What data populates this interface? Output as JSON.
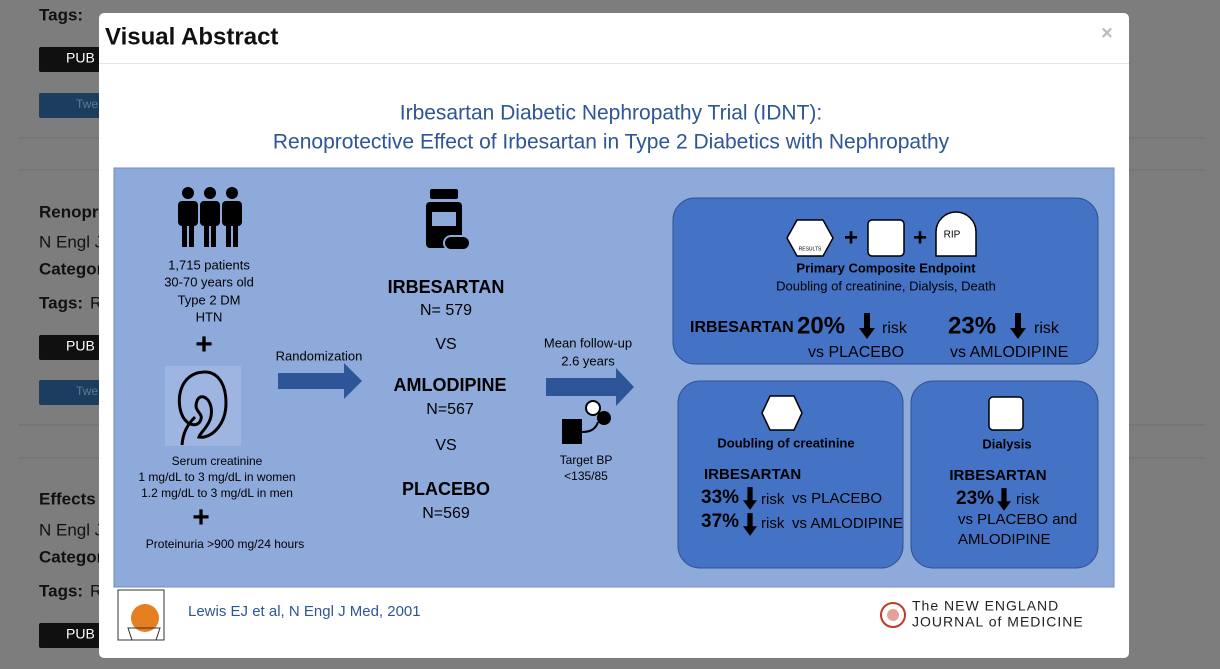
{
  "background": {
    "tags_label": "Tags:",
    "publication_button": "PUB",
    "twitter_button": "Twe",
    "articles": [
      {
        "title": "Renopr",
        "journal": "N Engl J",
        "category": "Categor",
        "tag": "R"
      },
      {
        "title": "Effects",
        "journal": "N Engl J",
        "category": "Categor",
        "tag": "R"
      }
    ]
  },
  "modal": {
    "title": "Visual Abstract",
    "close": "×"
  },
  "abstract": {
    "title": [
      "Irbesartan Diabetic Nephropathy Trial (IDNT):",
      "Renoprotective Effect of Irbesartan in Type 2 Diabetics with Nephropathy"
    ],
    "population": [
      "1,715 patients",
      "30-70 years old",
      "Type 2 DM",
      "HTN"
    ],
    "plus": "+",
    "creatinine": [
      "Serum creatinine",
      "1 mg/dL to 3 mg/dL in women",
      "1.2 mg/dL to 3 mg/dL in men"
    ],
    "proteinuria": "Proteinuria >900 mg/24 hours",
    "randomization": "Randomization",
    "arms": [
      {
        "name": "IRBESARTAN",
        "n": "N= 579"
      },
      {
        "name": "AMLODIPINE",
        "n": "N=567"
      },
      {
        "name": "PLACEBO",
        "n": "N=569"
      }
    ],
    "vs": "VS",
    "followup": [
      "Mean follow-up",
      "2.6 years"
    ],
    "target": [
      "Target BP",
      "<135/85"
    ],
    "composite": {
      "icon_labels": [
        "RESULTS",
        "RIP"
      ],
      "label": "Primary Composite Endpoint",
      "components": "Doubling of creatinine, Dialysis, Death",
      "drug": "IRBESARTAN",
      "results": [
        {
          "value": "20%",
          "unit": "risk",
          "comparator": "vs PLACEBO"
        },
        {
          "value": "23%",
          "unit": "risk",
          "comparator": "vs AMLODIPINE"
        }
      ]
    },
    "creatinine_doubling": {
      "label": "Doubling of creatinine",
      "drug": "IRBESARTAN",
      "results": [
        {
          "value": "33%",
          "unit": "risk",
          "comparator": "vs PLACEBO"
        },
        {
          "value": "37%",
          "unit": "risk",
          "comparator": "vs AMLODIPINE"
        }
      ]
    },
    "dialysis": {
      "label": "Dialysis",
      "drug": "IRBESARTAN",
      "value": "23%",
      "unit": "risk",
      "comparator": [
        "vs PLACEBO and",
        "AMLODIPINE"
      ]
    },
    "citation": "Lewis EJ et al, N Engl J Med, 2001",
    "journal": [
      "The NEW ENGLAND",
      "JOURNAL of MEDICINE"
    ]
  }
}
